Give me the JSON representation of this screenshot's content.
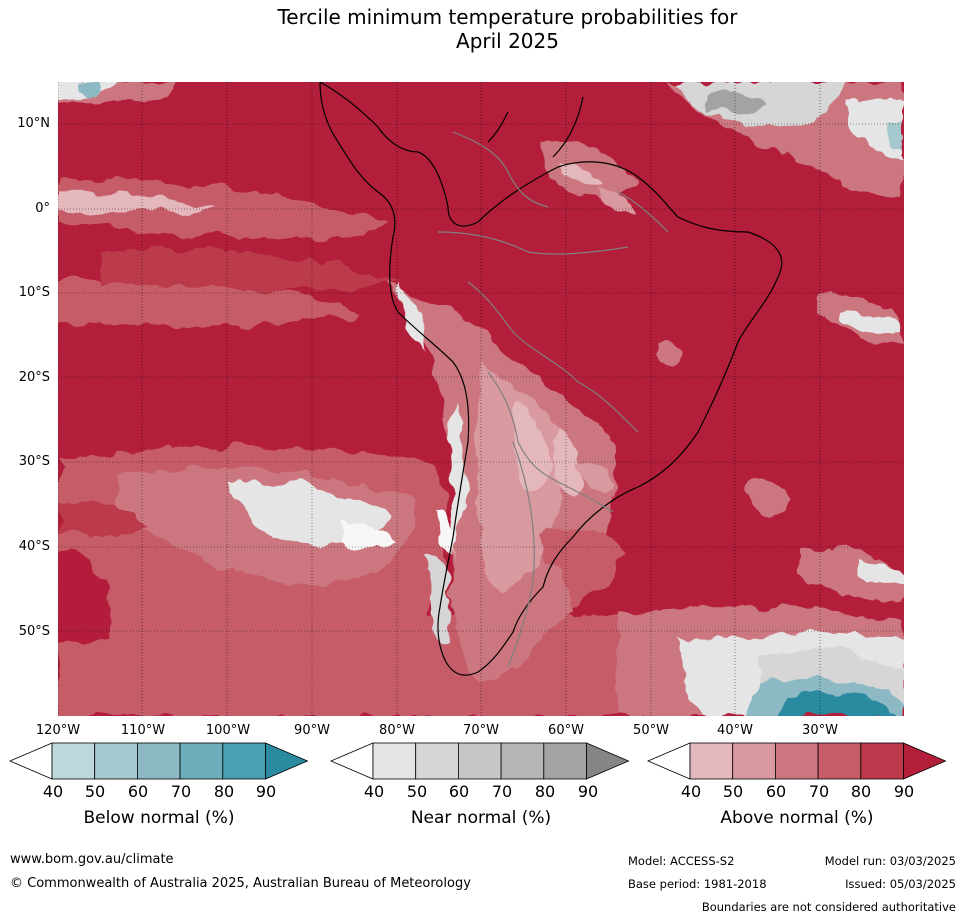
{
  "title": {
    "line1": "Tercile minimum temperature probabilities for",
    "line2": "April 2025"
  },
  "map": {
    "lat_labels": [
      "10°N",
      "0°",
      "10°S",
      "20°S",
      "30°S",
      "40°S",
      "50°S"
    ],
    "lon_labels": [
      "120°W",
      "110°W",
      "100°W",
      "90°W",
      "80°W",
      "70°W",
      "60°W",
      "50°W",
      "40°W",
      "30°W"
    ],
    "colors": {
      "above_dominant": "#b31e3a",
      "near_normal_white": "#f7f7f7"
    }
  },
  "colorbars": [
    {
      "title": "Below normal (%)",
      "ticks": [
        "40",
        "50",
        "60",
        "70",
        "80",
        "90"
      ],
      "colors": [
        "#ffffff",
        "#bcd7dd",
        "#a6c9cf",
        "#8cb9c3",
        "#6caeb9",
        "#4aa0b1",
        "#2a8aa0"
      ]
    },
    {
      "title": "Near normal (%)",
      "ticks": [
        "40",
        "50",
        "60",
        "70",
        "80",
        "90"
      ],
      "colors": [
        "#ffffff",
        "#e5e5e5",
        "#d6d6d6",
        "#c6c6c6",
        "#b5b5b5",
        "#a3a3a3",
        "#858585"
      ]
    },
    {
      "title": "Above normal (%)",
      "ticks": [
        "40",
        "50",
        "60",
        "70",
        "80",
        "90"
      ],
      "colors": [
        "#ffffff",
        "#e4b7bd",
        "#d8999f",
        "#cc777f",
        "#c55c68",
        "#bb3a4c",
        "#b31e3a"
      ]
    }
  ],
  "footer": {
    "website": "www.bom.gov.au/climate",
    "copyright": "© Commonwealth of Australia 2025, Australian Bureau of Meteorology",
    "model": "Model: ACCESS-S2",
    "base_period": "Base period: 1981-2018",
    "model_run": "Model run: 03/03/2025",
    "issued": "Issued: 05/03/2025",
    "boundaries_note": "Boundaries are not considered authoritative"
  }
}
